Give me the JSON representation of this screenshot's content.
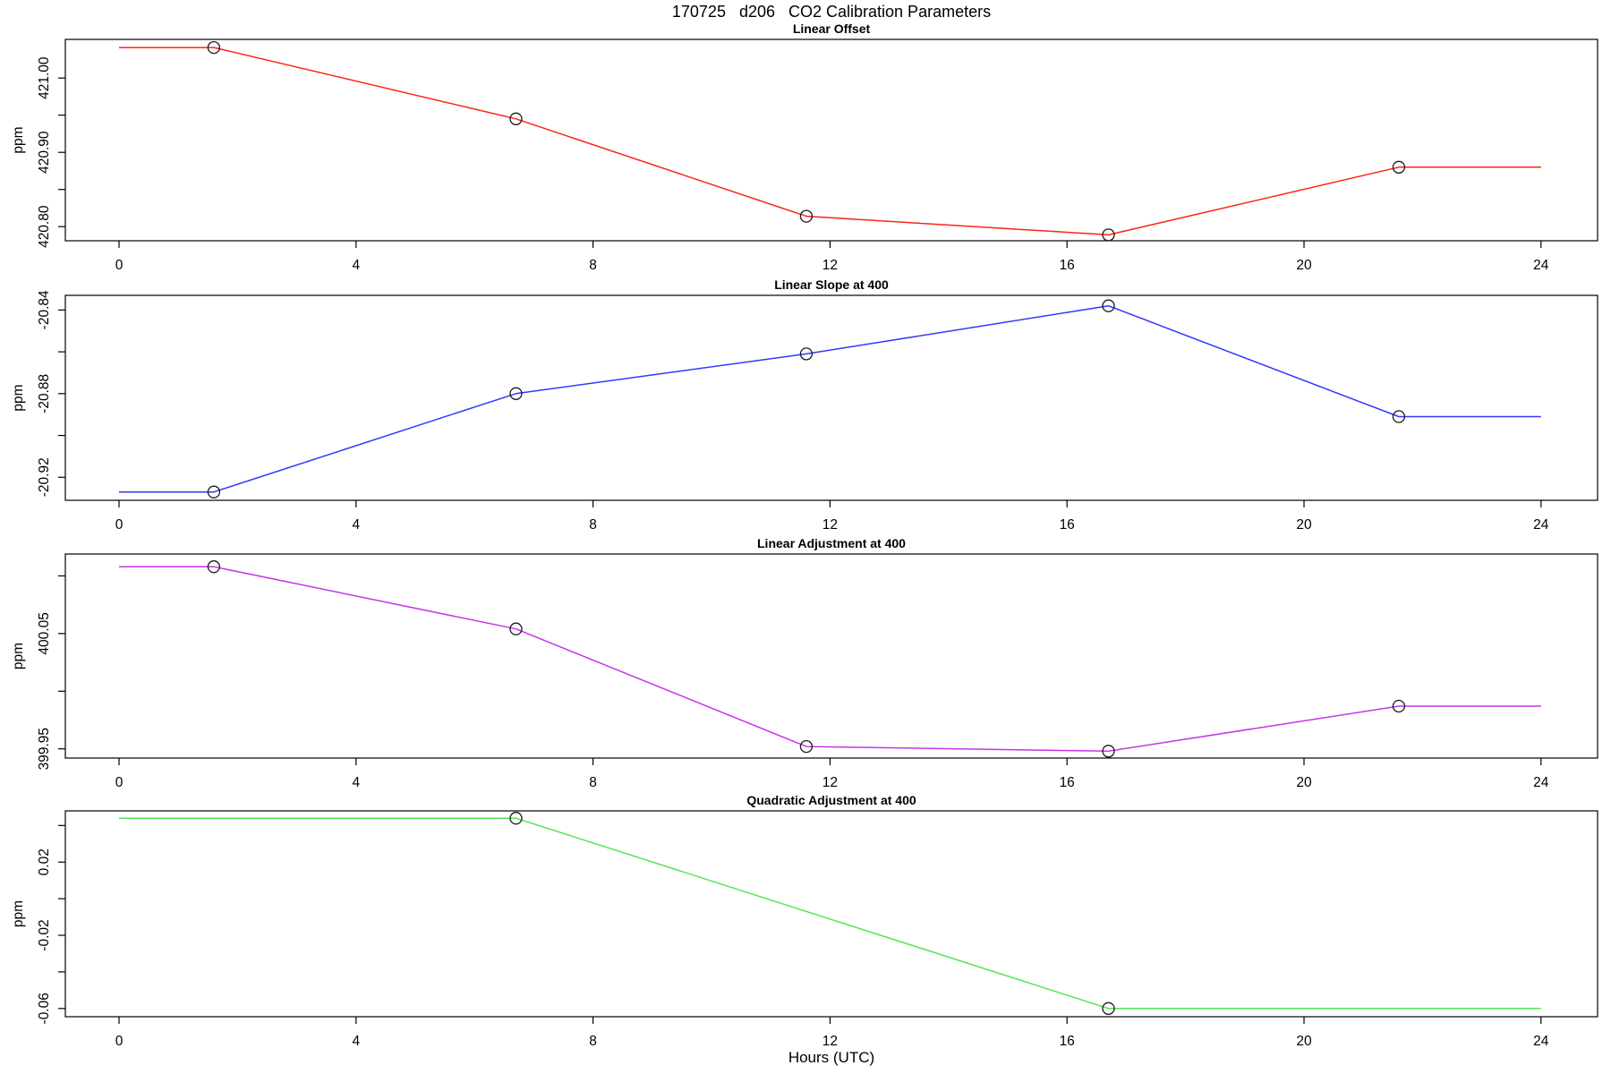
{
  "main_title": "170725   d206   CO2 Calibration Parameters",
  "x_axis_label": "Hours (UTC)",
  "y_axis_label": "ppm",
  "point_marker": "open-circle",
  "marker_color": "#1a1a1a",
  "chart_data": [
    {
      "type": "line",
      "title": "Linear Offset",
      "ylabel": "ppm",
      "color": "#fb2416",
      "x": [
        1.6,
        6.7,
        11.6,
        16.7,
        21.6
      ],
      "values": [
        421.041,
        420.945,
        420.814,
        420.789,
        420.88
      ],
      "flat_ends": true,
      "xlim": [
        0,
        24
      ],
      "ylim": [
        420.781,
        421.052
      ],
      "xticks": [
        0,
        4,
        8,
        12,
        16,
        20,
        24
      ],
      "yticks": [
        421.0,
        420.95,
        420.9,
        420.85,
        420.8
      ],
      "ytick_labels": [
        "421.00",
        "",
        "420.90",
        "",
        "420.80"
      ],
      "grid": false,
      "legend": "none"
    },
    {
      "type": "line",
      "title": "Linear Slope at 400",
      "ylabel": "ppm",
      "color": "#3437fb",
      "x": [
        1.6,
        6.7,
        11.6,
        16.7,
        21.6
      ],
      "values": [
        -20.927,
        -20.88,
        -20.861,
        -20.838,
        -20.891
      ],
      "flat_ends": true,
      "xlim": [
        0,
        24
      ],
      "ylim": [
        -20.931,
        -20.833
      ],
      "xticks": [
        0,
        4,
        8,
        12,
        16,
        20,
        24
      ],
      "yticks": [
        -20.84,
        -20.86,
        -20.88,
        -20.9,
        -20.92
      ],
      "ytick_labels": [
        "-20.84",
        "",
        "-20.88",
        "",
        "-20.92"
      ],
      "grid": false,
      "legend": "none"
    },
    {
      "type": "line",
      "title": "Linear Adjustment at 400",
      "ylabel": "ppm",
      "color": "#c734e8",
      "x": [
        1.6,
        6.7,
        11.6,
        16.7,
        21.6
      ],
      "values": [
        400.108,
        400.054,
        399.952,
        399.948,
        399.987
      ],
      "flat_ends": true,
      "xlim": [
        0,
        24
      ],
      "ylim": [
        399.942,
        400.119
      ],
      "xticks": [
        0,
        4,
        8,
        12,
        16,
        20,
        24
      ],
      "yticks": [
        400.1,
        400.05,
        400.0,
        399.95
      ],
      "ytick_labels": [
        "",
        "400.05",
        "",
        "399.95"
      ],
      "grid": false,
      "legend": "none"
    },
    {
      "type": "line",
      "title": "Quadratic Adjustment at 400",
      "ylabel": "ppm",
      "color": "#53e653",
      "x": [
        6.7,
        16.7
      ],
      "values": [
        0.044,
        -0.06
      ],
      "flat_ends": true,
      "xlim": [
        0,
        24
      ],
      "ylim": [
        -0.0645,
        0.048
      ],
      "xticks": [
        0,
        4,
        8,
        12,
        16,
        20,
        24
      ],
      "yticks": [
        0.04,
        0.02,
        0.0,
        -0.02,
        -0.04,
        -0.06
      ],
      "ytick_labels": [
        "",
        "0.02",
        "",
        "-0.02",
        "",
        "-0.06"
      ],
      "grid": false,
      "legend": "none"
    }
  ]
}
